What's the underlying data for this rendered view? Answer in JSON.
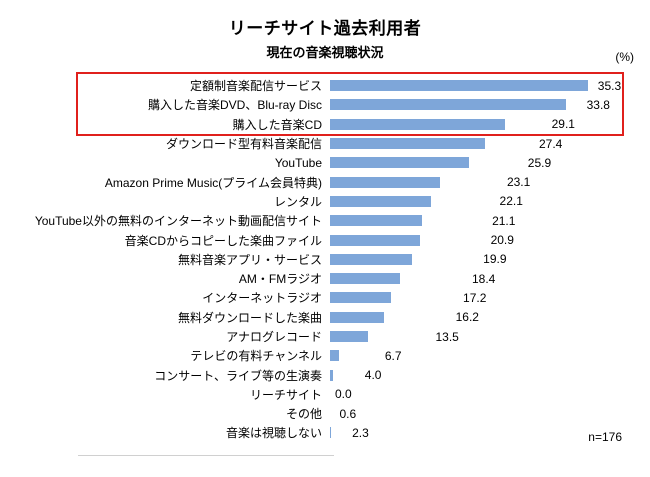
{
  "header": {
    "title": "リーチサイト過去利用者",
    "subtitle": "現在の音楽視聴状況",
    "unit_label": "(%)"
  },
  "footer": {
    "sample_size": "n=176"
  },
  "chart_data": {
    "type": "bar",
    "orientation": "horizontal",
    "title": "リーチサイト過去利用者",
    "subtitle": "現在の音楽視聴状況",
    "xlabel": "(%)",
    "xlim": [
      0,
      36
    ],
    "bar_color": "#7EA6D9",
    "highlight_box_color": "#e0201c",
    "highlight_indices": [
      0,
      1,
      2
    ],
    "categories": [
      "定額制音楽配信サービス",
      "購入した音楽DVD、Blu-ray Disc",
      "購入した音楽CD",
      "ダウンロード型有料音楽配信",
      "YouTube",
      "Amazon Prime Music(プライム会員特典)",
      "レンタル",
      "YouTube以外の無料のインターネット動画配信サイト",
      "音楽CDからコピーした楽曲ファイル",
      "無料音楽アプリ・サービス",
      "AM・FMラジオ",
      "インターネットラジオ",
      "無料ダウンロードした楽曲",
      "アナログレコード",
      "テレビの有料チャンネル",
      "コンサート、ライブ等の生演奏",
      "リーチサイト",
      "その他",
      "音楽は視聴しない"
    ],
    "values": [
      35.3,
      33.8,
      29.1,
      27.4,
      25.9,
      23.1,
      22.1,
      21.1,
      20.9,
      19.9,
      18.4,
      17.2,
      16.2,
      13.5,
      6.7,
      4.0,
      0.0,
      0.6,
      2.3
    ],
    "value_labels": [
      "35.3",
      "33.8",
      "29.1",
      "27.4",
      "25.9",
      "23.1",
      "22.1",
      "21.1",
      "20.9",
      "19.9",
      "18.4",
      "17.2",
      "16.2",
      "13.5",
      "6.7",
      "4.0",
      "0.0",
      "0.6",
      "2.3"
    ],
    "annotation": "n=176",
    "legend": null,
    "grid": false
  }
}
